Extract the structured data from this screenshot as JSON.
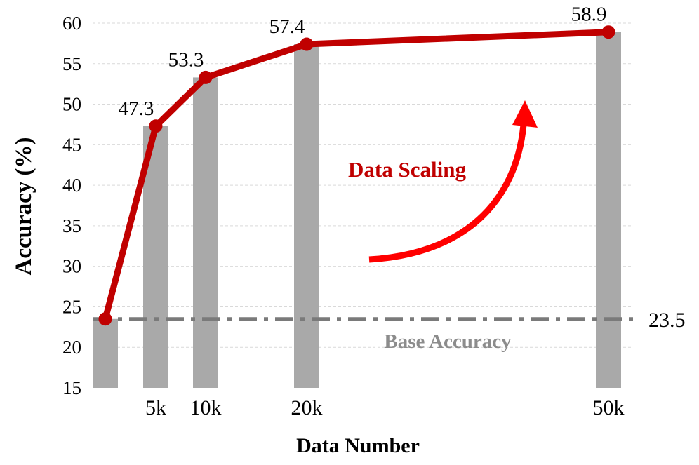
{
  "chart_data": {
    "type": "bar",
    "xlabel": "Data Number",
    "ylabel": "Accuracy (%)",
    "ylim": [
      15,
      60
    ],
    "y_ticks": [
      15,
      20,
      25,
      30,
      35,
      40,
      45,
      50,
      55,
      60
    ],
    "grid": true,
    "x_positions_k": [
      0,
      5,
      10,
      20,
      50
    ],
    "x_tick_labels": [
      "",
      "5k",
      "10k",
      "20k",
      "50k"
    ],
    "values": [
      23.5,
      47.3,
      53.3,
      57.4,
      58.9
    ],
    "point_labels": [
      "",
      "47.3",
      "53.3",
      "57.4",
      "58.9"
    ],
    "baseline": {
      "value": 23.5,
      "value_label": "23.5",
      "label": "Base Accuracy"
    },
    "annotation": "Data Scaling",
    "colors": {
      "bar": "#a9a9a9",
      "line": "#c00000",
      "marker": "#c00000",
      "baseline": "#7a7a7a",
      "annotation_text": "#c00000",
      "arrow": "#ff0000",
      "grid": "#d9d9d9"
    }
  }
}
